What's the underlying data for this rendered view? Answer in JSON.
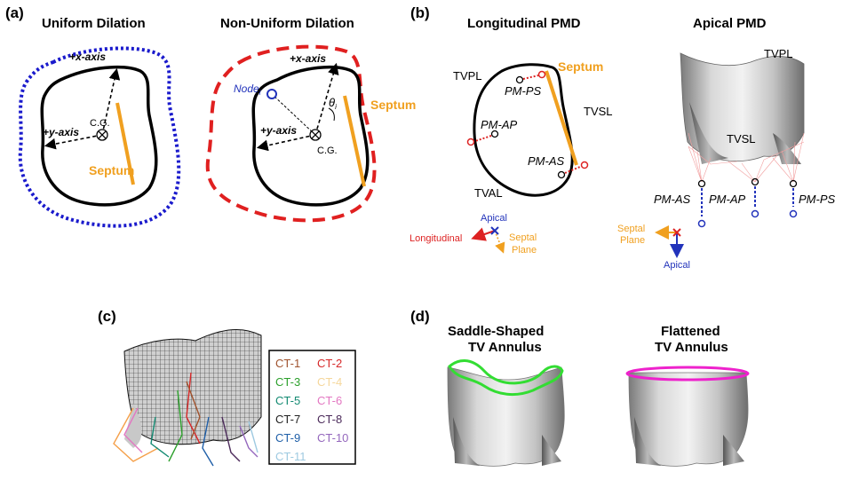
{
  "panel_a": {
    "label": "(a)",
    "left_title": "Uniform Dilation",
    "right_title": "Non-Uniform Dilation",
    "x_axis": "+x-axis",
    "y_axis": "+y-axis",
    "cg": "C.G.",
    "septum": "Septum",
    "node": "Node",
    "node_sub": "i",
    "theta": "θ",
    "theta_sub": "i"
  },
  "panel_b": {
    "label": "(b)",
    "left_title": "Longitudinal PMD",
    "right_title": "Apical PMD",
    "tvpl": "TVPL",
    "tvsl": "TVSL",
    "tval": "TVAL",
    "septum": "Septum",
    "pm_ps": "PM-PS",
    "pm_ap": "PM-AP",
    "pm_as": "PM-AS",
    "axes_left": {
      "apical": "Apical",
      "longitudinal": "Longitudinal",
      "septal_1": "Septal",
      "septal_2": "Plane"
    },
    "axes_right": {
      "septal_1": "Septal",
      "septal_2": "Plane",
      "apical": "Apical"
    }
  },
  "panel_c": {
    "label": "(c)",
    "legend": [
      {
        "text": "CT-1",
        "color": "#a0522d"
      },
      {
        "text": "CT-2",
        "color": "#d62728"
      },
      {
        "text": "CT-3",
        "color": "#2ca02c"
      },
      {
        "text": "CT-4",
        "color": "#f5d79b"
      },
      {
        "text": "CT-5",
        "color": "#138a72"
      },
      {
        "text": "CT-6",
        "color": "#e377c2"
      },
      {
        "text": "CT-7",
        "color": "#222222"
      },
      {
        "text": "CT-8",
        "color": "#4b2a5a"
      },
      {
        "text": "CT-9",
        "color": "#1f5fa8"
      },
      {
        "text": "CT-10",
        "color": "#9467bd"
      },
      {
        "text": "CT-11",
        "color": "#9ecae1"
      }
    ]
  },
  "panel_d": {
    "label": "(d)",
    "left_title_1": "Saddle-Shaped",
    "left_title_2": "TV Annulus",
    "right_title_1": "Flattened",
    "right_title_2": "TV Annulus"
  },
  "colors": {
    "septum": "#f0a020",
    "uniform_dots": "#1a1acc",
    "nonuniform_dash": "#e02020",
    "pm_red": "#dd2222",
    "apical_blue": "#2233bb",
    "saddle_green": "#33dd33",
    "flat_magenta": "#ee22cc"
  }
}
